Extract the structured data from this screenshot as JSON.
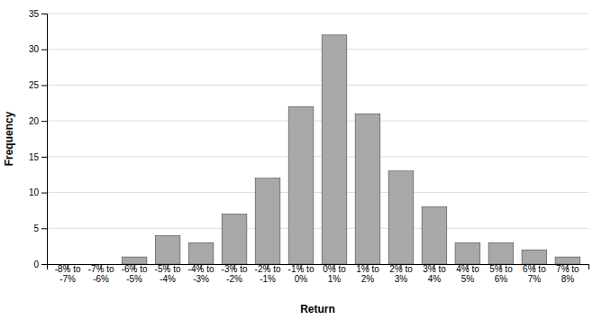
{
  "chart_data": {
    "type": "bar",
    "categories": [
      "-8% to\n-7%",
      "-7% to\n-6%",
      "-6% to\n-5%",
      "-5% to\n-4%",
      "-4% to\n-3%",
      "-3% to\n-2%",
      "-2% to\n-1%",
      "-1% to\n0%",
      "0% to\n1%",
      "1% to\n2%",
      "2% to\n3%",
      "3% to\n4%",
      "4% to\n5%",
      "5% to\n6%",
      "6% to\n7%",
      "7% to\n8%"
    ],
    "values": [
      0,
      0,
      1,
      4,
      3,
      7,
      12,
      22,
      32,
      21,
      13,
      8,
      3,
      3,
      2,
      1
    ],
    "color": "#a8a8a8",
    "xlabel": "Return",
    "ylabel": "Frequency",
    "ylim": [
      0,
      35
    ],
    "yticks": [
      0,
      5,
      10,
      15,
      20,
      25,
      30,
      35
    ],
    "grid": true
  }
}
